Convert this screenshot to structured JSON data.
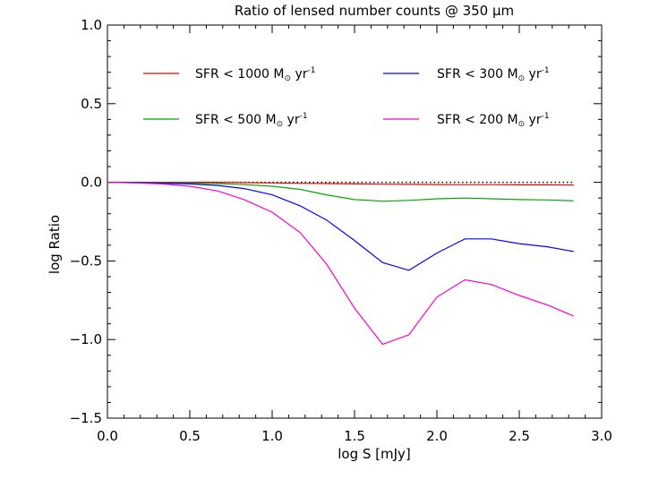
{
  "chart_data": {
    "type": "line",
    "title": "Ratio of lensed number counts @ 350 μm",
    "xlabel": "log S [mJy]",
    "ylabel": "log Ratio",
    "xlim": [
      0.0,
      3.0
    ],
    "ylim": [
      -1.5,
      1.0
    ],
    "x_ticks": [
      "0.0",
      "0.5",
      "1.0",
      "1.5",
      "2.0",
      "2.5",
      "3.0"
    ],
    "y_ticks": [
      "1.0",
      "0.5",
      "0.0",
      "−0.5",
      "−1.0",
      "−1.5"
    ],
    "x_tick_values": [
      0.0,
      0.5,
      1.0,
      1.5,
      2.0,
      2.5,
      3.0
    ],
    "y_tick_values": [
      1.0,
      0.5,
      0.0,
      -0.5,
      -1.0,
      -1.5
    ],
    "reference_line": {
      "y": 0.0,
      "x_range": [
        0.0,
        2.83
      ],
      "style": "dotted"
    },
    "legend_position": "top",
    "series": [
      {
        "name_prefix": "SFR < 1000 M",
        "name_suffix": " yr",
        "name_sup": "-1",
        "color": "#ff0000",
        "x": [
          0.0,
          0.17,
          0.33,
          0.5,
          0.67,
          0.83,
          1.0,
          1.17,
          1.33,
          1.5,
          1.67,
          1.83,
          2.0,
          2.17,
          2.33,
          2.5,
          2.67,
          2.83
        ],
        "y": [
          0.0,
          0.0,
          0.0,
          0.0,
          0.0,
          -0.002,
          -0.004,
          -0.006,
          -0.008,
          -0.01,
          -0.012,
          -0.013,
          -0.014,
          -0.015,
          -0.015,
          -0.016,
          -0.016,
          -0.017
        ]
      },
      {
        "name_prefix": "SFR < 500 M",
        "name_suffix": " yr",
        "name_sup": "-1",
        "color": "#00aa00",
        "x": [
          0.0,
          0.17,
          0.33,
          0.5,
          0.67,
          0.83,
          1.0,
          1.17,
          1.33,
          1.5,
          1.67,
          1.83,
          2.0,
          2.17,
          2.33,
          2.5,
          2.67,
          2.83
        ],
        "y": [
          0.0,
          0.0,
          -0.002,
          -0.004,
          -0.008,
          -0.015,
          -0.025,
          -0.045,
          -0.08,
          -0.11,
          -0.12,
          -0.115,
          -0.105,
          -0.1,
          -0.105,
          -0.11,
          -0.112,
          -0.118
        ]
      },
      {
        "name_prefix": "SFR < 300 M",
        "name_suffix": " yr",
        "name_sup": "-1",
        "color": "#0000ff",
        "x": [
          0.0,
          0.17,
          0.33,
          0.5,
          0.67,
          0.83,
          1.0,
          1.17,
          1.33,
          1.5,
          1.67,
          1.83,
          2.0,
          2.17,
          2.33,
          2.5,
          2.67,
          2.83
        ],
        "y": [
          0.0,
          -0.002,
          -0.005,
          -0.01,
          -0.02,
          -0.04,
          -0.08,
          -0.15,
          -0.24,
          -0.37,
          -0.51,
          -0.56,
          -0.45,
          -0.36,
          -0.36,
          -0.39,
          -0.41,
          -0.44
        ]
      },
      {
        "name_prefix": "SFR < 200 M",
        "name_suffix": " yr",
        "name_sup": "-1",
        "color": "#ff00cc",
        "x": [
          0.0,
          0.17,
          0.33,
          0.5,
          0.67,
          0.83,
          1.0,
          1.17,
          1.33,
          1.5,
          1.67,
          1.83,
          2.0,
          2.17,
          2.33,
          2.5,
          2.67,
          2.83
        ],
        "y": [
          0.0,
          -0.004,
          -0.01,
          -0.025,
          -0.055,
          -0.11,
          -0.19,
          -0.32,
          -0.52,
          -0.8,
          -1.03,
          -0.97,
          -0.73,
          -0.62,
          -0.65,
          -0.72,
          -0.78,
          -0.85
        ]
      }
    ]
  }
}
